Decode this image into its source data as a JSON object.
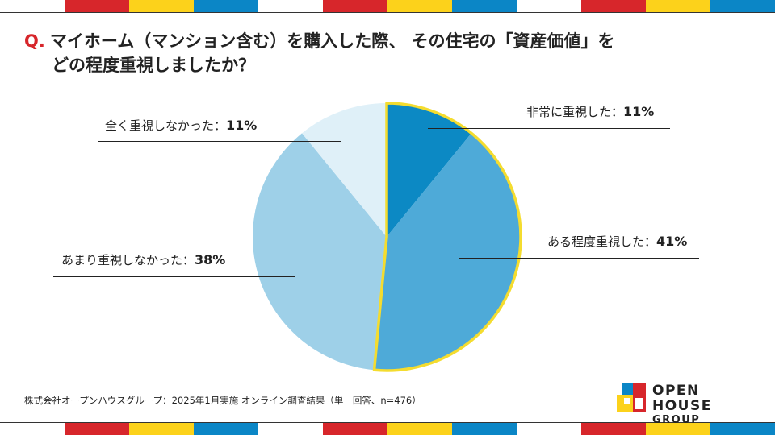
{
  "stripe_colors": [
    "#ffffff",
    "#d7262b",
    "#fcd21b",
    "#0b86c6"
  ],
  "question": {
    "mark": "Q.",
    "line1": "マイホーム（マンション含む）を購入した際、 その住宅の「資産価値」を",
    "line2": "どの程度重視しましたか？"
  },
  "chart_data": {
    "type": "pie",
    "title": "",
    "start_angle_deg": 0,
    "direction": "clockwise",
    "highlight_border_color": "#f4dc2f",
    "slices": [
      {
        "label": "非常に重視した：",
        "value": 11,
        "value_text": "11%",
        "color": "#0c89c4",
        "highlight": true
      },
      {
        "label": "ある程度重視した：",
        "value": 41,
        "value_text": "41%",
        "color": "#4eaad8",
        "highlight": true
      },
      {
        "label": "あまり重視しなかった：",
        "value": 38,
        "value_text": "38%",
        "color": "#9ed0e8",
        "highlight": false
      },
      {
        "label": "全く重視しなかった：",
        "value": 11,
        "value_text": "11%",
        "color": "#dff0f8",
        "highlight": false
      }
    ]
  },
  "source": "株式会社オープンハウスグループ：2025年1月実施 オンライン調査結果（単一回答、n=476）",
  "logo": {
    "line1": "OPEN HOUSE",
    "line2": "GROUP"
  }
}
